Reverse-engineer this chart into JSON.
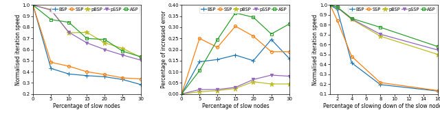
{
  "subplot1": {
    "xlabel": "Percentage of slow nodes",
    "ylabel": "Normalised iteration speed",
    "xlim": [
      0,
      30
    ],
    "ylim": [
      0.2,
      1.0
    ],
    "xticks": [
      0,
      5,
      10,
      15,
      20,
      25,
      30
    ],
    "yticks": [
      0.2,
      0.3,
      0.4,
      0.5,
      0.6,
      0.7,
      0.8,
      0.9,
      1.0
    ],
    "series": {
      "BSP": {
        "x": [
          0,
          5,
          10,
          15,
          20,
          25,
          30
        ],
        "y": [
          1.0,
          0.43,
          0.38,
          0.365,
          0.355,
          0.33,
          0.285
        ],
        "color": "#1f77b4",
        "marker": "+",
        "filled": true
      },
      "SSP": {
        "x": [
          0,
          5,
          10,
          15,
          20,
          25,
          30
        ],
        "y": [
          1.0,
          0.485,
          0.45,
          0.4,
          0.375,
          0.345,
          0.335
        ],
        "color": "#ff7f0e",
        "marker": "o",
        "filled": false
      },
      "pBSP": {
        "x": [
          0,
          5,
          10,
          15,
          20,
          25,
          30
        ],
        "y": [
          1.0,
          0.96,
          0.75,
          0.755,
          0.66,
          0.61,
          0.53
        ],
        "color": "#bcbd22",
        "marker": "*",
        "filled": true
      },
      "pSSP": {
        "x": [
          0,
          5,
          10,
          15,
          20,
          25,
          30
        ],
        "y": [
          1.0,
          0.955,
          0.755,
          0.66,
          0.6,
          0.55,
          0.505
        ],
        "color": "#9467bd",
        "marker": "v",
        "filled": true
      },
      "ASP": {
        "x": [
          0,
          5,
          10,
          15,
          20,
          25,
          30
        ],
        "y": [
          1.0,
          0.87,
          0.845,
          0.7,
          0.69,
          0.585,
          0.535
        ],
        "color": "#2ca02c",
        "marker": "s",
        "filled": false
      }
    }
  },
  "subplot2": {
    "xlabel": "Percentage of slow nodes",
    "ylabel": "Percentage of increased error",
    "xlim": [
      0,
      30
    ],
    "ylim": [
      0,
      0.4
    ],
    "xticks": [
      0,
      5,
      10,
      15,
      20,
      25,
      30
    ],
    "yticks": [
      0.0,
      0.05,
      0.1,
      0.15,
      0.2,
      0.25,
      0.3,
      0.35,
      0.4
    ],
    "series": {
      "BSP": {
        "x": [
          0,
          5,
          10,
          15,
          20,
          25,
          30
        ],
        "y": [
          0.0,
          0.145,
          0.155,
          0.175,
          0.15,
          0.245,
          0.16
        ],
        "color": "#1f77b4",
        "marker": "+",
        "filled": true
      },
      "SSP": {
        "x": [
          0,
          5,
          10,
          15,
          20,
          25,
          30
        ],
        "y": [
          0.0,
          0.25,
          0.21,
          0.305,
          0.26,
          0.19,
          0.19
        ],
        "color": "#ff7f0e",
        "marker": "o",
        "filled": false
      },
      "pBSP": {
        "x": [
          0,
          5,
          10,
          15,
          20,
          25,
          30
        ],
        "y": [
          0.0,
          0.01,
          0.015,
          0.025,
          0.055,
          0.045,
          0.045
        ],
        "color": "#bcbd22",
        "marker": "*",
        "filled": true
      },
      "pSSP": {
        "x": [
          0,
          5,
          10,
          15,
          20,
          25,
          30
        ],
        "y": [
          0.0,
          0.02,
          0.02,
          0.03,
          0.065,
          0.085,
          0.08
        ],
        "color": "#9467bd",
        "marker": "v",
        "filled": true
      },
      "ASP": {
        "x": [
          0,
          5,
          10,
          15,
          20,
          25,
          30
        ],
        "y": [
          0.0,
          0.105,
          0.245,
          0.365,
          0.345,
          0.27,
          0.315
        ],
        "color": "#2ca02c",
        "marker": "s",
        "filled": false
      }
    }
  },
  "subplot3": {
    "xlabel": "Percentage of slowing down of the slow nodes",
    "ylabel": "Normalised iteration speed",
    "xlim": [
      1,
      16
    ],
    "ylim": [
      0.1,
      1.0
    ],
    "xticks": [
      2,
      4,
      6,
      8,
      10,
      12,
      14,
      16
    ],
    "yticks": [
      0.1,
      0.2,
      0.3,
      0.4,
      0.5,
      0.6,
      0.7,
      0.8,
      0.9,
      1.0
    ],
    "series": {
      "BSP": {
        "x": [
          1,
          2,
          4,
          8,
          16
        ],
        "y": [
          1.0,
          0.955,
          0.415,
          0.195,
          0.13
        ],
        "color": "#1f77b4",
        "marker": "+",
        "filled": true
      },
      "SSP": {
        "x": [
          1,
          2,
          4,
          8,
          16
        ],
        "y": [
          1.0,
          0.845,
          0.48,
          0.215,
          0.135
        ],
        "color": "#ff7f0e",
        "marker": "o",
        "filled": false
      },
      "pBSP": {
        "x": [
          1,
          2,
          4,
          8,
          16
        ],
        "y": [
          1.0,
          0.975,
          0.855,
          0.685,
          0.5
        ],
        "color": "#bcbd22",
        "marker": "*",
        "filled": true
      },
      "pSSP": {
        "x": [
          1,
          2,
          4,
          8,
          16
        ],
        "y": [
          1.0,
          0.975,
          0.86,
          0.705,
          0.545
        ],
        "color": "#9467bd",
        "marker": "v",
        "filled": true
      },
      "ASP": {
        "x": [
          1,
          2,
          4,
          8,
          16
        ],
        "y": [
          1.0,
          0.98,
          0.865,
          0.775,
          0.58
        ],
        "color": "#2ca02c",
        "marker": "s",
        "filled": false
      }
    }
  },
  "legend_labels": [
    "BSP",
    "SSP",
    "pBSP",
    "pSSP",
    "ASP"
  ],
  "label_fontsize": 5.5,
  "tick_fontsize": 5.0,
  "legend_fontsize": 4.8,
  "markersize_map": {
    "+": 5,
    "o": 3,
    "*": 5,
    "v": 3,
    "s": 3
  },
  "linewidth": 0.9,
  "markeredgewidth": 0.8
}
